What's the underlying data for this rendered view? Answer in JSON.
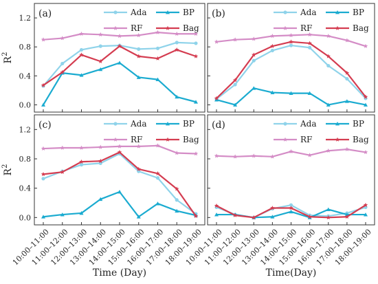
{
  "figure": {
    "ylabel": "R",
    "ylabel_sup": "2",
    "xlabels": [
      "Time (Day)",
      "Time(Day)"
    ]
  },
  "chart_data": [
    {
      "panel": "(a)",
      "type": "line",
      "categories": [
        "10:00–11:00",
        "11:00–12:00",
        "12:00–13:00",
        "13:00–14:00",
        "14:00–15:00",
        "15:00–16:00",
        "16:00–17:00",
        "17:00–18:00",
        "18:00–19:00"
      ],
      "ylim": [
        -0.1,
        1.4
      ],
      "yticks": [
        0.0,
        0.4,
        0.8,
        1.2
      ],
      "legend": "top-right",
      "series": [
        {
          "name": "Ada",
          "color": "#8fd3ea",
          "marker": "circle",
          "values": [
            0.26,
            0.57,
            0.76,
            0.81,
            0.82,
            0.77,
            0.78,
            0.86,
            0.85
          ]
        },
        {
          "name": "BP",
          "color": "#1aabd0",
          "marker": "triangle",
          "values": [
            0.0,
            0.44,
            0.41,
            0.49,
            0.58,
            0.38,
            0.35,
            0.11,
            0.04
          ]
        },
        {
          "name": "RF",
          "color": "#d48cc6",
          "marker": "star",
          "values": [
            0.9,
            0.92,
            0.98,
            0.97,
            0.95,
            0.96,
            1.0,
            0.98,
            0.98
          ]
        },
        {
          "name": "Bag",
          "color": "#d43c50",
          "marker": "star",
          "values": [
            0.27,
            0.45,
            0.69,
            0.6,
            0.81,
            0.67,
            0.64,
            0.76,
            0.67
          ]
        }
      ]
    },
    {
      "panel": "(b)",
      "type": "line",
      "categories": [
        "10:00–11:00",
        "11:00–12:00",
        "12:00–13:00",
        "13:00–14:00",
        "14:00–15:00",
        "15:00–16:00",
        "16:00–17:00",
        "17:00–18:00",
        "18:00–19:00"
      ],
      "ylim": [
        -0.1,
        1.4
      ],
      "yticks": [
        0.0,
        0.4,
        0.8,
        1.2
      ],
      "legend": "top-right",
      "series": [
        {
          "name": "Ada",
          "color": "#8fd3ea",
          "marker": "circle",
          "values": [
            0.08,
            0.28,
            0.61,
            0.75,
            0.82,
            0.79,
            0.54,
            0.36,
            0.09
          ]
        },
        {
          "name": "BP",
          "color": "#1aabd0",
          "marker": "triangle",
          "values": [
            0.07,
            0.0,
            0.23,
            0.17,
            0.16,
            0.16,
            0.0,
            0.05,
            0.0
          ]
        },
        {
          "name": "RF",
          "color": "#d48cc6",
          "marker": "star",
          "values": [
            0.87,
            0.9,
            0.91,
            0.95,
            0.96,
            0.97,
            0.95,
            0.89,
            0.81
          ]
        },
        {
          "name": "Bag",
          "color": "#d43c50",
          "marker": "star",
          "values": [
            0.09,
            0.34,
            0.69,
            0.81,
            0.87,
            0.85,
            0.67,
            0.44,
            0.11
          ]
        }
      ]
    },
    {
      "panel": "(c)",
      "type": "line",
      "categories": [
        "10:00–11:00",
        "11:00–12:00",
        "12:00–13:00",
        "13:00–14:00",
        "14:00–15:00",
        "15:00–16:00",
        "16:00–17:00",
        "17:00–18:00",
        "18:00–19:00"
      ],
      "ylim": [
        -0.1,
        1.4
      ],
      "yticks": [
        0.0,
        0.4,
        0.8,
        1.2
      ],
      "legend": "top-right",
      "series": [
        {
          "name": "Ada",
          "color": "#8fd3ea",
          "marker": "circle",
          "values": [
            0.53,
            0.63,
            0.72,
            0.74,
            0.87,
            0.63,
            0.54,
            0.24,
            0.05
          ]
        },
        {
          "name": "BP",
          "color": "#1aabd0",
          "marker": "triangle",
          "values": [
            0.01,
            0.04,
            0.06,
            0.25,
            0.35,
            0.01,
            0.19,
            0.09,
            0.03
          ]
        },
        {
          "name": "RF",
          "color": "#d48cc6",
          "marker": "star",
          "values": [
            0.94,
            0.95,
            0.95,
            0.96,
            0.97,
            0.97,
            0.98,
            0.88,
            0.87
          ]
        },
        {
          "name": "Bag",
          "color": "#d43c50",
          "marker": "star",
          "values": [
            0.59,
            0.62,
            0.76,
            0.77,
            0.89,
            0.66,
            0.6,
            0.39,
            0.02
          ]
        }
      ]
    },
    {
      "panel": "(d)",
      "type": "line",
      "categories": [
        "10:00–11:00",
        "11:00–12:00",
        "12:00–13:00",
        "13:00–14:00",
        "14:00–15:00",
        "15:00–16:00",
        "16:00–17:00",
        "17:00–18:00",
        "18:00–19:00"
      ],
      "ylim": [
        -0.1,
        1.4
      ],
      "yticks": [
        0.0,
        0.4,
        0.8,
        1.2
      ],
      "legend": "top-right",
      "series": [
        {
          "name": "Ada",
          "color": "#8fd3ea",
          "marker": "circle",
          "values": [
            0.14,
            0.04,
            0.0,
            0.12,
            0.17,
            0.03,
            0.02,
            0.06,
            0.14
          ]
        },
        {
          "name": "BP",
          "color": "#1aabd0",
          "marker": "triangle",
          "values": [
            0.04,
            0.04,
            0.0,
            0.01,
            0.08,
            0.0,
            0.11,
            0.04,
            0.04
          ]
        },
        {
          "name": "RF",
          "color": "#d48cc6",
          "marker": "star",
          "values": [
            0.84,
            0.83,
            0.84,
            0.83,
            0.9,
            0.85,
            0.91,
            0.93,
            0.89
          ]
        },
        {
          "name": "Bag",
          "color": "#d43c50",
          "marker": "star",
          "values": [
            0.16,
            0.03,
            0.0,
            0.13,
            0.13,
            0.01,
            0.0,
            0.01,
            0.17
          ]
        }
      ]
    }
  ]
}
